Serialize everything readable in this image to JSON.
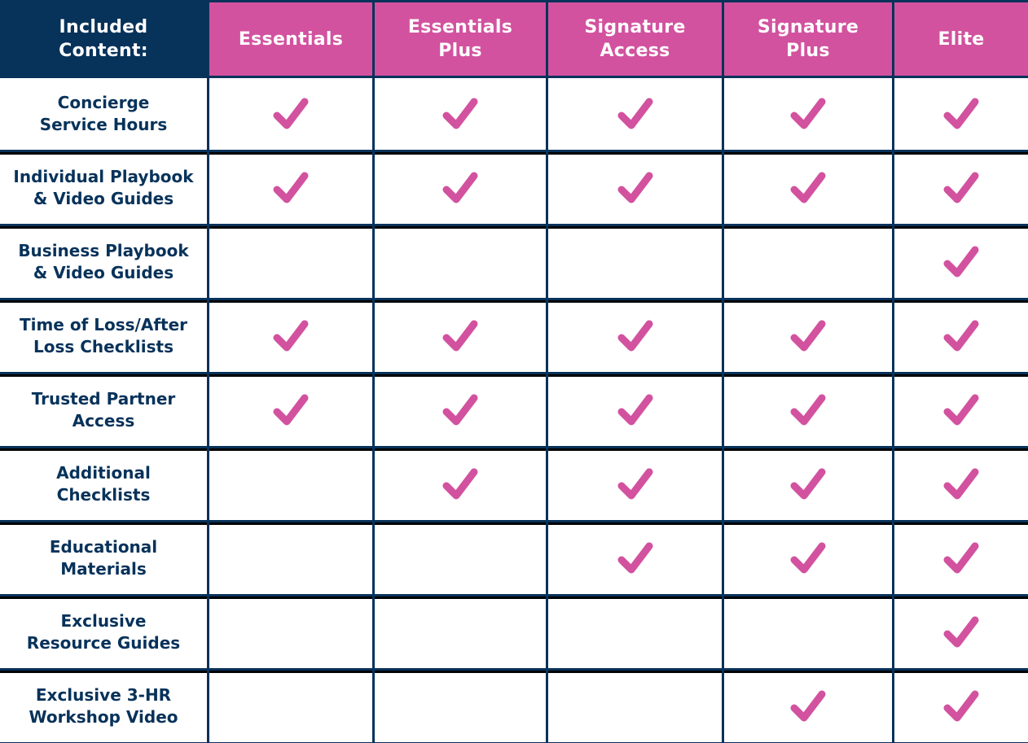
{
  "header": {
    "label": "Included\nContent:",
    "plans": [
      "Essentials",
      "Essentials\nPlus",
      "Signature\nAccess",
      "Signature\nPlus",
      "Elite"
    ]
  },
  "colors": {
    "navy": "#07325a",
    "pink": "#d2529f",
    "white": "#ffffff"
  },
  "rows": [
    {
      "label": "Concierge\nService Hours",
      "included": [
        true,
        true,
        true,
        true,
        true
      ]
    },
    {
      "label": "Individual Playbook\n& Video Guides",
      "included": [
        true,
        true,
        true,
        true,
        true
      ]
    },
    {
      "label": "Business Playbook\n& Video Guides",
      "included": [
        false,
        false,
        false,
        false,
        true
      ]
    },
    {
      "label": "Time of Loss/After\nLoss Checklists",
      "included": [
        true,
        true,
        true,
        true,
        true
      ]
    },
    {
      "label": "Trusted Partner\nAccess",
      "included": [
        true,
        true,
        true,
        true,
        true
      ]
    },
    {
      "label": "Additional\nChecklists",
      "included": [
        false,
        true,
        true,
        true,
        true
      ]
    },
    {
      "label": "Educational\nMaterials",
      "included": [
        false,
        false,
        true,
        true,
        true
      ]
    },
    {
      "label": "Exclusive\nResource Guides",
      "included": [
        false,
        false,
        false,
        false,
        true
      ]
    },
    {
      "label": "Exclusive 3-HR\nWorkshop Video",
      "included": [
        false,
        false,
        false,
        true,
        true
      ]
    }
  ],
  "icons": {
    "included": "check-icon"
  }
}
